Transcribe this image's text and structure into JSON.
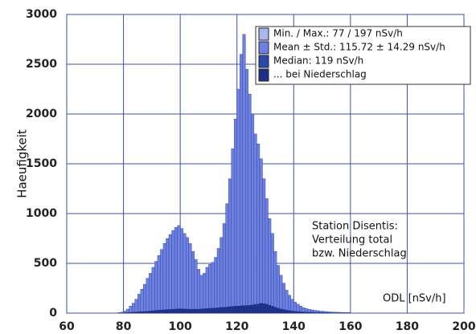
{
  "chart_data": {
    "type": "histogram",
    "ylabel": "Haeufigkeit",
    "xlabel": "ODL [nSv/h]",
    "annotation": [
      "Station Disentis:",
      "Verteilung total",
      "bzw. Niederschlag"
    ],
    "legend_stats": [
      {
        "label": "Min. / Max.: 77 / 197 nSv/h",
        "color": "#aab6f0"
      },
      {
        "label": "Mean ± Std.: 115.72 ± 14.29 nSv/h",
        "color": "#6e81e0"
      },
      {
        "label": "Median: 119 nSv/h",
        "color": "#2c48a8"
      }
    ],
    "xlim": [
      60,
      200
    ],
    "xticks": [
      60,
      80,
      100,
      120,
      140,
      160,
      180,
      200
    ],
    "ylim": [
      0,
      3000
    ],
    "yticks": [
      0,
      500,
      1000,
      1500,
      2000,
      2500,
      3000
    ],
    "grid": true,
    "bins": [
      78,
      79,
      80,
      81,
      82,
      83,
      84,
      85,
      86,
      87,
      88,
      89,
      90,
      91,
      92,
      93,
      94,
      95,
      96,
      97,
      98,
      99,
      100,
      101,
      102,
      103,
      104,
      105,
      106,
      107,
      108,
      109,
      110,
      111,
      112,
      113,
      114,
      115,
      116,
      117,
      118,
      119,
      120,
      121,
      122,
      123,
      124,
      125,
      126,
      127,
      128,
      129,
      130,
      131,
      132,
      133,
      134,
      135,
      136,
      137,
      138,
      139,
      140,
      141,
      142,
      143,
      144,
      145,
      146,
      147,
      148,
      149,
      150,
      151,
      152,
      153,
      154,
      155,
      156,
      157,
      158,
      159,
      160
    ],
    "values": [
      5,
      10,
      20,
      40,
      70,
      100,
      140,
      190,
      240,
      290,
      350,
      400,
      460,
      520,
      580,
      640,
      700,
      750,
      790,
      830,
      860,
      880,
      850,
      800,
      760,
      700,
      620,
      540,
      440,
      380,
      400,
      460,
      490,
      510,
      560,
      650,
      760,
      900,
      1100,
      1350,
      1650,
      1950,
      2250,
      2600,
      2800,
      2450,
      2200,
      2000,
      1800,
      1700,
      1550,
      1350,
      1150,
      950,
      800,
      620,
      480,
      380,
      300,
      230,
      180,
      140,
      110,
      90,
      70,
      55,
      45,
      38,
      32,
      28,
      24,
      20,
      18,
      15,
      13,
      11,
      10,
      9,
      8,
      7,
      6,
      5
    ],
    "color": "#6e81e0",
    "series": [
      {
        "name": "... bei Niederschlag",
        "color": "#1c3185",
        "values": [
          1,
          2,
          4,
          6,
          8,
          10,
          12,
          14,
          16,
          18,
          20,
          22,
          25,
          28,
          30,
          32,
          34,
          36,
          38,
          40,
          42,
          44,
          44,
          42,
          40,
          40,
          40,
          40,
          40,
          42,
          44,
          46,
          48,
          50,
          52,
          55,
          58,
          60,
          62,
          65,
          68,
          70,
          72,
          74,
          76,
          78,
          80,
          84,
          88,
          92,
          100,
          96,
          90,
          80,
          70,
          60,
          50,
          42,
          36,
          30,
          26,
          22,
          18,
          16,
          14,
          12,
          10,
          9,
          8,
          7,
          6,
          5,
          5,
          4,
          4,
          3,
          3,
          3,
          2,
          2,
          2,
          2
        ]
      }
    ]
  }
}
